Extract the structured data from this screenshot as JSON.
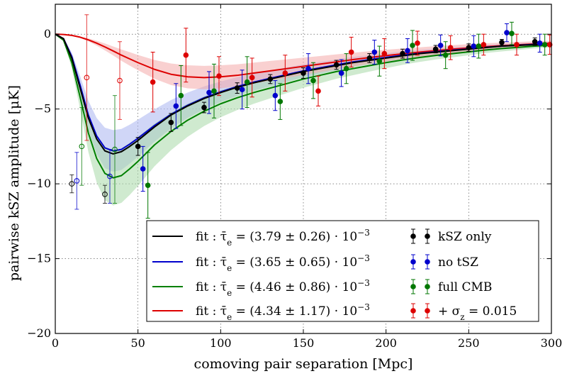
{
  "chart_data": {
    "type": "scatter",
    "title": "",
    "xlabel": "comoving pair separation [Mpc]",
    "ylabel": "pairwise kSZ amplitude [μK]",
    "xlim": [
      0,
      300
    ],
    "ylim": [
      -20,
      2
    ],
    "x_ticks": [
      0,
      50,
      100,
      150,
      200,
      250,
      300
    ],
    "y_ticks": [
      0,
      -5,
      -10,
      -15,
      -20
    ],
    "grid": true,
    "grid_style": "dotted",
    "legend_placement": "lower-center",
    "fit_curves": [
      {
        "name": "fit : τ̄e = (3.79 ± 0.26) · 10⁻³",
        "label_parts": {
          "prefix": "fit :  τ̄",
          "sub": "e",
          "mid": " = (3.79 ± 0.26) · 10",
          "sup": "−3"
        },
        "color": "#000000",
        "x": [
          0,
          5,
          10,
          15,
          20,
          25,
          30,
          35,
          40,
          45,
          50,
          60,
          70,
          80,
          90,
          100,
          110,
          120,
          130,
          140,
          150,
          160,
          170,
          180,
          190,
          200,
          210,
          220,
          230,
          240,
          250,
          260,
          270,
          280,
          290,
          300
        ],
        "y": [
          0,
          -0.3,
          -1.6,
          -3.6,
          -5.6,
          -7.0,
          -7.8,
          -8.0,
          -7.85,
          -7.5,
          -7.1,
          -6.2,
          -5.4,
          -4.8,
          -4.3,
          -3.9,
          -3.55,
          -3.25,
          -3.0,
          -2.75,
          -2.5,
          -2.3,
          -2.1,
          -1.9,
          -1.75,
          -1.6,
          -1.45,
          -1.3,
          -1.2,
          -1.1,
          -1.0,
          -0.9,
          -0.8,
          -0.75,
          -0.7,
          -0.65
        ]
      },
      {
        "name": "fit : τ̄e = (3.65 ± 0.65) · 10⁻³",
        "label_parts": {
          "prefix": "fit :  τ̄",
          "sub": "e",
          "mid": " = (3.65 ± 0.65) · 10",
          "sup": "−3"
        },
        "color": "#0000cc",
        "band_color": "#aab4f0",
        "x": [
          0,
          5,
          10,
          15,
          20,
          25,
          30,
          35,
          40,
          45,
          50,
          60,
          70,
          80,
          90,
          100,
          110,
          120,
          130,
          140,
          150,
          160,
          170,
          180,
          190,
          200,
          210,
          220,
          230,
          240,
          250,
          260,
          270,
          280,
          290,
          300
        ],
        "y": [
          0,
          -0.3,
          -1.5,
          -3.4,
          -5.4,
          -6.8,
          -7.6,
          -7.8,
          -7.7,
          -7.35,
          -6.95,
          -6.1,
          -5.35,
          -4.75,
          -4.25,
          -3.85,
          -3.5,
          -3.2,
          -2.95,
          -2.7,
          -2.45,
          -2.25,
          -2.05,
          -1.85,
          -1.7,
          -1.55,
          -1.4,
          -1.28,
          -1.17,
          -1.07,
          -0.98,
          -0.88,
          -0.8,
          -0.74,
          -0.68,
          -0.63
        ],
        "band_halfwidth": [
          0,
          0.05,
          0.27,
          0.6,
          0.96,
          1.2,
          1.35,
          1.39,
          1.37,
          1.3,
          1.24,
          1.08,
          0.95,
          0.85,
          0.76,
          0.69,
          0.62,
          0.57,
          0.53,
          0.48,
          0.44,
          0.4,
          0.36,
          0.33,
          0.3,
          0.28,
          0.25,
          0.23,
          0.21,
          0.19,
          0.17,
          0.16,
          0.14,
          0.13,
          0.12,
          0.11
        ]
      },
      {
        "name": "fit : τ̄e = (4.46 ± 0.86) · 10⁻³",
        "label_parts": {
          "prefix": "fit :  τ̄",
          "sub": "e",
          "mid": " = (4.46 ± 0.86) · 10",
          "sup": "−3"
        },
        "color": "#008000",
        "band_color": "#a8d8a8",
        "x": [
          0,
          5,
          10,
          15,
          20,
          25,
          30,
          35,
          40,
          45,
          50,
          60,
          70,
          80,
          90,
          100,
          110,
          120,
          130,
          140,
          150,
          160,
          170,
          180,
          190,
          200,
          210,
          220,
          230,
          240,
          250,
          260,
          270,
          280,
          290,
          300
        ],
        "y": [
          0,
          -0.4,
          -1.9,
          -4.2,
          -6.6,
          -8.3,
          -9.3,
          -9.6,
          -9.45,
          -9.0,
          -8.5,
          -7.4,
          -6.5,
          -5.75,
          -5.15,
          -4.65,
          -4.25,
          -3.9,
          -3.6,
          -3.3,
          -3.0,
          -2.75,
          -2.5,
          -2.3,
          -2.1,
          -1.9,
          -1.72,
          -1.56,
          -1.42,
          -1.3,
          -1.18,
          -1.06,
          -0.96,
          -0.88,
          -0.8,
          -0.74
        ],
        "band_halfwidth": [
          0,
          0.08,
          0.37,
          0.81,
          1.27,
          1.6,
          1.79,
          1.85,
          1.82,
          1.74,
          1.64,
          1.43,
          1.25,
          1.11,
          0.99,
          0.9,
          0.82,
          0.75,
          0.69,
          0.64,
          0.58,
          0.53,
          0.48,
          0.44,
          0.4,
          0.37,
          0.33,
          0.3,
          0.27,
          0.25,
          0.23,
          0.2,
          0.19,
          0.17,
          0.15,
          0.14
        ]
      },
      {
        "name": "fit : τ̄e = (4.34 ± 1.17) · 10⁻³",
        "label_parts": {
          "prefix": "fit :  τ̄",
          "sub": "e",
          "mid": " = (4.34 ± 1.17) · 10",
          "sup": "−3"
        },
        "color": "#dd0000",
        "band_color": "#f4aaaa",
        "x": [
          0,
          5,
          10,
          15,
          20,
          25,
          30,
          35,
          40,
          45,
          50,
          60,
          70,
          80,
          90,
          100,
          110,
          120,
          130,
          140,
          150,
          160,
          170,
          180,
          190,
          200,
          210,
          220,
          230,
          240,
          250,
          260,
          270,
          280,
          290,
          300
        ],
        "y": [
          0,
          -0.02,
          -0.08,
          -0.2,
          -0.38,
          -0.6,
          -0.85,
          -1.12,
          -1.4,
          -1.65,
          -1.9,
          -2.35,
          -2.68,
          -2.85,
          -2.9,
          -2.85,
          -2.75,
          -2.6,
          -2.45,
          -2.3,
          -2.15,
          -2.0,
          -1.85,
          -1.7,
          -1.56,
          -1.43,
          -1.31,
          -1.2,
          -1.1,
          -1.0,
          -0.92,
          -0.84,
          -0.77,
          -0.71,
          -0.65,
          -0.6
        ],
        "band_halfwidth": [
          0,
          0.01,
          0.02,
          0.05,
          0.1,
          0.16,
          0.23,
          0.3,
          0.38,
          0.45,
          0.51,
          0.63,
          0.72,
          0.77,
          0.78,
          0.77,
          0.74,
          0.7,
          0.66,
          0.62,
          0.58,
          0.54,
          0.5,
          0.46,
          0.42,
          0.39,
          0.35,
          0.32,
          0.3,
          0.27,
          0.25,
          0.23,
          0.21,
          0.19,
          0.18,
          0.16
        ]
      }
    ],
    "data_series": [
      {
        "name": "kSZ only",
        "color": "#000000",
        "x": [
          10,
          30,
          50,
          70,
          90,
          110,
          130,
          150,
          170,
          190,
          210,
          230,
          250,
          270,
          290
        ],
        "y": [
          -10.0,
          -10.7,
          -7.5,
          -5.9,
          -4.9,
          -3.6,
          -3.0,
          -2.6,
          -2.05,
          -1.6,
          -1.3,
          -1.0,
          -0.9,
          -0.55,
          -0.5
        ],
        "yerr": [
          0.6,
          0.6,
          0.6,
          0.6,
          0.35,
          0.35,
          0.3,
          0.35,
          0.3,
          0.3,
          0.3,
          0.25,
          0.25,
          0.2,
          0.25
        ],
        "open_markers": [
          true,
          true,
          false,
          false,
          false,
          false,
          false,
          false,
          false,
          false,
          false,
          false,
          false,
          false,
          false
        ]
      },
      {
        "name": "no tSZ",
        "color": "#0000cc",
        "x": [
          13,
          33,
          53,
          73,
          93,
          113,
          133,
          153,
          173,
          193,
          213,
          233,
          253,
          273,
          293
        ],
        "y": [
          -9.8,
          -9.5,
          -9.0,
          -4.8,
          -3.9,
          -3.7,
          -4.1,
          -2.3,
          -2.6,
          -1.2,
          -1.1,
          -0.75,
          -0.8,
          0.1,
          -0.6
        ],
        "yerr": [
          1.9,
          1.8,
          1.5,
          1.5,
          1.4,
          1.3,
          1.0,
          1.0,
          0.9,
          0.8,
          0.8,
          0.7,
          0.7,
          0.6,
          0.6
        ],
        "open_markers": [
          true,
          true,
          false,
          false,
          false,
          false,
          false,
          false,
          false,
          false,
          false,
          false,
          false,
          false,
          false
        ]
      },
      {
        "name": "full CMB",
        "color": "#007700",
        "x": [
          16,
          36,
          56,
          76,
          96,
          116,
          136,
          156,
          176,
          196,
          216,
          236,
          256,
          276,
          296
        ],
        "y": [
          -7.5,
          -7.7,
          -10.1,
          -4.1,
          -3.8,
          -3.2,
          -4.5,
          -3.1,
          -2.3,
          -1.8,
          -0.75,
          -1.4,
          -0.8,
          0.05,
          -0.7
        ],
        "yerr": [
          2.6,
          3.6,
          2.2,
          2.0,
          1.8,
          1.7,
          1.2,
          1.2,
          1.0,
          1.0,
          1.0,
          0.9,
          0.8,
          0.75,
          0.7
        ],
        "open_markers": [
          true,
          true,
          false,
          false,
          false,
          false,
          false,
          false,
          false,
          false,
          false,
          false,
          false,
          false,
          false
        ]
      },
      {
        "name": "+ σz = 0.015",
        "label_parts": {
          "prefix": "+ σ",
          "sub": "z",
          "mid": " = 0.015"
        },
        "color": "#dd0000",
        "x": [
          19,
          39,
          59,
          79,
          99,
          119,
          139,
          159,
          179,
          199,
          219,
          239,
          259,
          279,
          299
        ],
        "y": [
          -2.9,
          -3.1,
          -3.2,
          -1.4,
          -2.8,
          -2.9,
          -2.6,
          -3.8,
          -1.2,
          -1.3,
          -0.6,
          -0.9,
          -0.7,
          -0.7,
          -0.7
        ],
        "yerr": [
          4.2,
          2.6,
          2.0,
          1.8,
          1.3,
          1.3,
          1.2,
          1.0,
          1.0,
          1.0,
          0.8,
          0.8,
          0.7,
          0.7,
          0.65
        ],
        "open_markers": [
          true,
          true,
          false,
          false,
          false,
          false,
          false,
          false,
          false,
          false,
          false,
          false,
          false,
          false,
          false
        ]
      }
    ]
  }
}
